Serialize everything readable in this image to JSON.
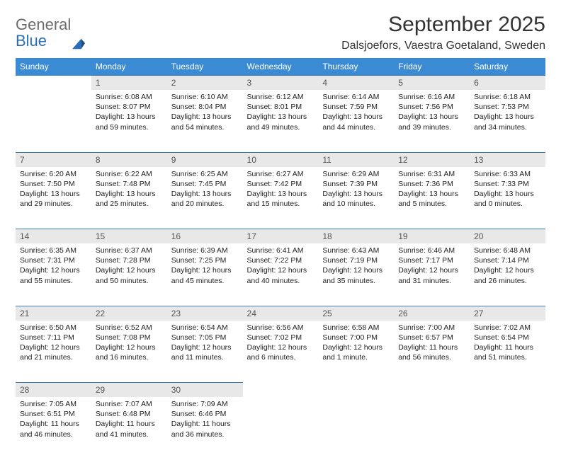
{
  "brand": {
    "general": "General",
    "blue": "Blue"
  },
  "title": "September 2025",
  "location": "Dalsjoefors, Vaestra Goetaland, Sweden",
  "colors": {
    "header_bg": "#3b8bd4",
    "header_text": "#ffffff",
    "daynum_bg": "#e8e8e8",
    "daynum_text": "#555555",
    "rule": "#3b7bb0",
    "body_text": "#222222",
    "logo_gray": "#6b6b6b",
    "logo_blue": "#2a6db8"
  },
  "typography": {
    "title_fontsize": 30,
    "location_fontsize": 16,
    "header_fontsize": 12,
    "daynum_fontsize": 12,
    "cell_fontsize": 10.5
  },
  "days": [
    "Sunday",
    "Monday",
    "Tuesday",
    "Wednesday",
    "Thursday",
    "Friday",
    "Saturday"
  ],
  "weeks": [
    {
      "nums": [
        "",
        "1",
        "2",
        "3",
        "4",
        "5",
        "6"
      ],
      "cells": [
        {
          "empty": true
        },
        {
          "sunrise": "Sunrise: 6:08 AM",
          "sunset": "Sunset: 8:07 PM",
          "daylight": "Daylight: 13 hours and 59 minutes."
        },
        {
          "sunrise": "Sunrise: 6:10 AM",
          "sunset": "Sunset: 8:04 PM",
          "daylight": "Daylight: 13 hours and 54 minutes."
        },
        {
          "sunrise": "Sunrise: 6:12 AM",
          "sunset": "Sunset: 8:01 PM",
          "daylight": "Daylight: 13 hours and 49 minutes."
        },
        {
          "sunrise": "Sunrise: 6:14 AM",
          "sunset": "Sunset: 7:59 PM",
          "daylight": "Daylight: 13 hours and 44 minutes."
        },
        {
          "sunrise": "Sunrise: 6:16 AM",
          "sunset": "Sunset: 7:56 PM",
          "daylight": "Daylight: 13 hours and 39 minutes."
        },
        {
          "sunrise": "Sunrise: 6:18 AM",
          "sunset": "Sunset: 7:53 PM",
          "daylight": "Daylight: 13 hours and 34 minutes."
        }
      ]
    },
    {
      "nums": [
        "7",
        "8",
        "9",
        "10",
        "11",
        "12",
        "13"
      ],
      "cells": [
        {
          "sunrise": "Sunrise: 6:20 AM",
          "sunset": "Sunset: 7:50 PM",
          "daylight": "Daylight: 13 hours and 29 minutes."
        },
        {
          "sunrise": "Sunrise: 6:22 AM",
          "sunset": "Sunset: 7:48 PM",
          "daylight": "Daylight: 13 hours and 25 minutes."
        },
        {
          "sunrise": "Sunrise: 6:25 AM",
          "sunset": "Sunset: 7:45 PM",
          "daylight": "Daylight: 13 hours and 20 minutes."
        },
        {
          "sunrise": "Sunrise: 6:27 AM",
          "sunset": "Sunset: 7:42 PM",
          "daylight": "Daylight: 13 hours and 15 minutes."
        },
        {
          "sunrise": "Sunrise: 6:29 AM",
          "sunset": "Sunset: 7:39 PM",
          "daylight": "Daylight: 13 hours and 10 minutes."
        },
        {
          "sunrise": "Sunrise: 6:31 AM",
          "sunset": "Sunset: 7:36 PM",
          "daylight": "Daylight: 13 hours and 5 minutes."
        },
        {
          "sunrise": "Sunrise: 6:33 AM",
          "sunset": "Sunset: 7:33 PM",
          "daylight": "Daylight: 13 hours and 0 minutes."
        }
      ]
    },
    {
      "nums": [
        "14",
        "15",
        "16",
        "17",
        "18",
        "19",
        "20"
      ],
      "cells": [
        {
          "sunrise": "Sunrise: 6:35 AM",
          "sunset": "Sunset: 7:31 PM",
          "daylight": "Daylight: 12 hours and 55 minutes."
        },
        {
          "sunrise": "Sunrise: 6:37 AM",
          "sunset": "Sunset: 7:28 PM",
          "daylight": "Daylight: 12 hours and 50 minutes."
        },
        {
          "sunrise": "Sunrise: 6:39 AM",
          "sunset": "Sunset: 7:25 PM",
          "daylight": "Daylight: 12 hours and 45 minutes."
        },
        {
          "sunrise": "Sunrise: 6:41 AM",
          "sunset": "Sunset: 7:22 PM",
          "daylight": "Daylight: 12 hours and 40 minutes."
        },
        {
          "sunrise": "Sunrise: 6:43 AM",
          "sunset": "Sunset: 7:19 PM",
          "daylight": "Daylight: 12 hours and 35 minutes."
        },
        {
          "sunrise": "Sunrise: 6:46 AM",
          "sunset": "Sunset: 7:17 PM",
          "daylight": "Daylight: 12 hours and 31 minutes."
        },
        {
          "sunrise": "Sunrise: 6:48 AM",
          "sunset": "Sunset: 7:14 PM",
          "daylight": "Daylight: 12 hours and 26 minutes."
        }
      ]
    },
    {
      "nums": [
        "21",
        "22",
        "23",
        "24",
        "25",
        "26",
        "27"
      ],
      "cells": [
        {
          "sunrise": "Sunrise: 6:50 AM",
          "sunset": "Sunset: 7:11 PM",
          "daylight": "Daylight: 12 hours and 21 minutes."
        },
        {
          "sunrise": "Sunrise: 6:52 AM",
          "sunset": "Sunset: 7:08 PM",
          "daylight": "Daylight: 12 hours and 16 minutes."
        },
        {
          "sunrise": "Sunrise: 6:54 AM",
          "sunset": "Sunset: 7:05 PM",
          "daylight": "Daylight: 12 hours and 11 minutes."
        },
        {
          "sunrise": "Sunrise: 6:56 AM",
          "sunset": "Sunset: 7:02 PM",
          "daylight": "Daylight: 12 hours and 6 minutes."
        },
        {
          "sunrise": "Sunrise: 6:58 AM",
          "sunset": "Sunset: 7:00 PM",
          "daylight": "Daylight: 12 hours and 1 minute."
        },
        {
          "sunrise": "Sunrise: 7:00 AM",
          "sunset": "Sunset: 6:57 PM",
          "daylight": "Daylight: 11 hours and 56 minutes."
        },
        {
          "sunrise": "Sunrise: 7:02 AM",
          "sunset": "Sunset: 6:54 PM",
          "daylight": "Daylight: 11 hours and 51 minutes."
        }
      ]
    },
    {
      "nums": [
        "28",
        "29",
        "30",
        "",
        "",
        "",
        ""
      ],
      "cells": [
        {
          "sunrise": "Sunrise: 7:05 AM",
          "sunset": "Sunset: 6:51 PM",
          "daylight": "Daylight: 11 hours and 46 minutes."
        },
        {
          "sunrise": "Sunrise: 7:07 AM",
          "sunset": "Sunset: 6:48 PM",
          "daylight": "Daylight: 11 hours and 41 minutes."
        },
        {
          "sunrise": "Sunrise: 7:09 AM",
          "sunset": "Sunset: 6:46 PM",
          "daylight": "Daylight: 11 hours and 36 minutes."
        },
        {
          "empty": true
        },
        {
          "empty": true
        },
        {
          "empty": true
        },
        {
          "empty": true
        }
      ]
    }
  ]
}
